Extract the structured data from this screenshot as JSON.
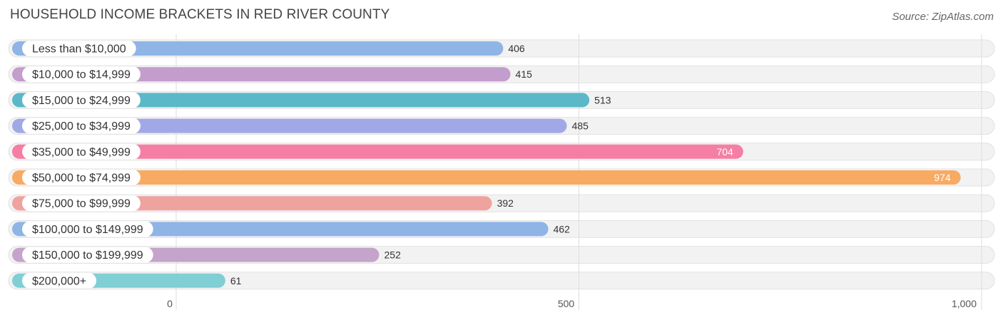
{
  "chart_data": {
    "type": "bar",
    "orientation": "horizontal",
    "title": "HOUSEHOLD INCOME BRACKETS IN RED RIVER COUNTY",
    "source": "Source: ZipAtlas.com",
    "xlabel": "",
    "ylabel": "",
    "xlim": [
      0,
      1000
    ],
    "ticks": [
      0,
      500,
      1000
    ],
    "tick_labels": [
      "0",
      "500",
      "1,000"
    ],
    "categories": [
      "Less than $10,000",
      "$10,000 to $14,999",
      "$15,000 to $24,999",
      "$25,000 to $34,999",
      "$35,000 to $49,999",
      "$50,000 to $74,999",
      "$75,000 to $99,999",
      "$100,000 to $149,999",
      "$150,000 to $199,999",
      "$200,000+"
    ],
    "values": [
      406,
      415,
      513,
      485,
      704,
      974,
      392,
      462,
      252,
      61
    ],
    "value_labels": [
      "406",
      "415",
      "513",
      "485",
      "704",
      "974",
      "392",
      "462",
      "252",
      "61"
    ],
    "colors": [
      "#8fb4e6",
      "#c39dcb",
      "#5bb8c8",
      "#a0a9e6",
      "#f47ea4",
      "#f8aa63",
      "#efa39e",
      "#8fb4e6",
      "#c5a4cc",
      "#7fcfd4"
    ],
    "grid": true
  }
}
